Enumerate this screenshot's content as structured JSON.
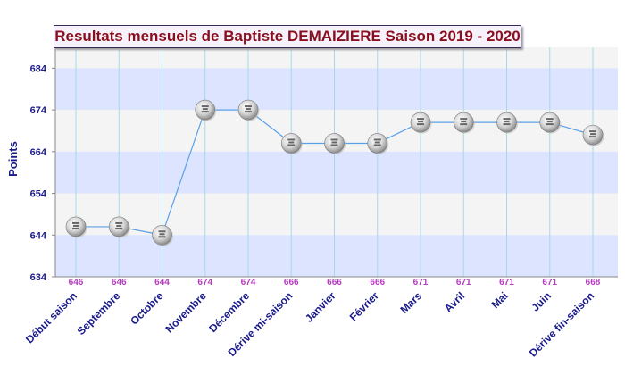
{
  "chart_data": {
    "type": "line",
    "title": "Resultats mensuels de Baptiste DEMAIZIERE Saison 2019 - 2020",
    "ylabel": "Points",
    "xlabel": "",
    "ylim": [
      634,
      689
    ],
    "yticks": [
      634,
      644,
      654,
      664,
      674,
      684
    ],
    "grid": true,
    "categories": [
      "Début saison",
      "Septembre",
      "Octobre",
      "Novembre",
      "Décembre",
      "Dérive mi-saison",
      "Janvier",
      "Février",
      "Mars",
      "Avril",
      "Mai",
      "Juin",
      "Dérive fin-saison"
    ],
    "series": [
      {
        "name": "",
        "values": [
          646,
          646,
          644,
          674,
          674,
          666,
          666,
          666,
          671,
          671,
          671,
          671,
          668
        ]
      }
    ],
    "colors": {
      "line": "#5aa0e6",
      "value_labels": "#b43cbe",
      "axis_labels": "#1a1a8a",
      "band_light": "#f4f4f4",
      "band_blue": "#dce4ff",
      "vgrid": "#a8d8e8",
      "title": "#8a0f1e"
    }
  }
}
